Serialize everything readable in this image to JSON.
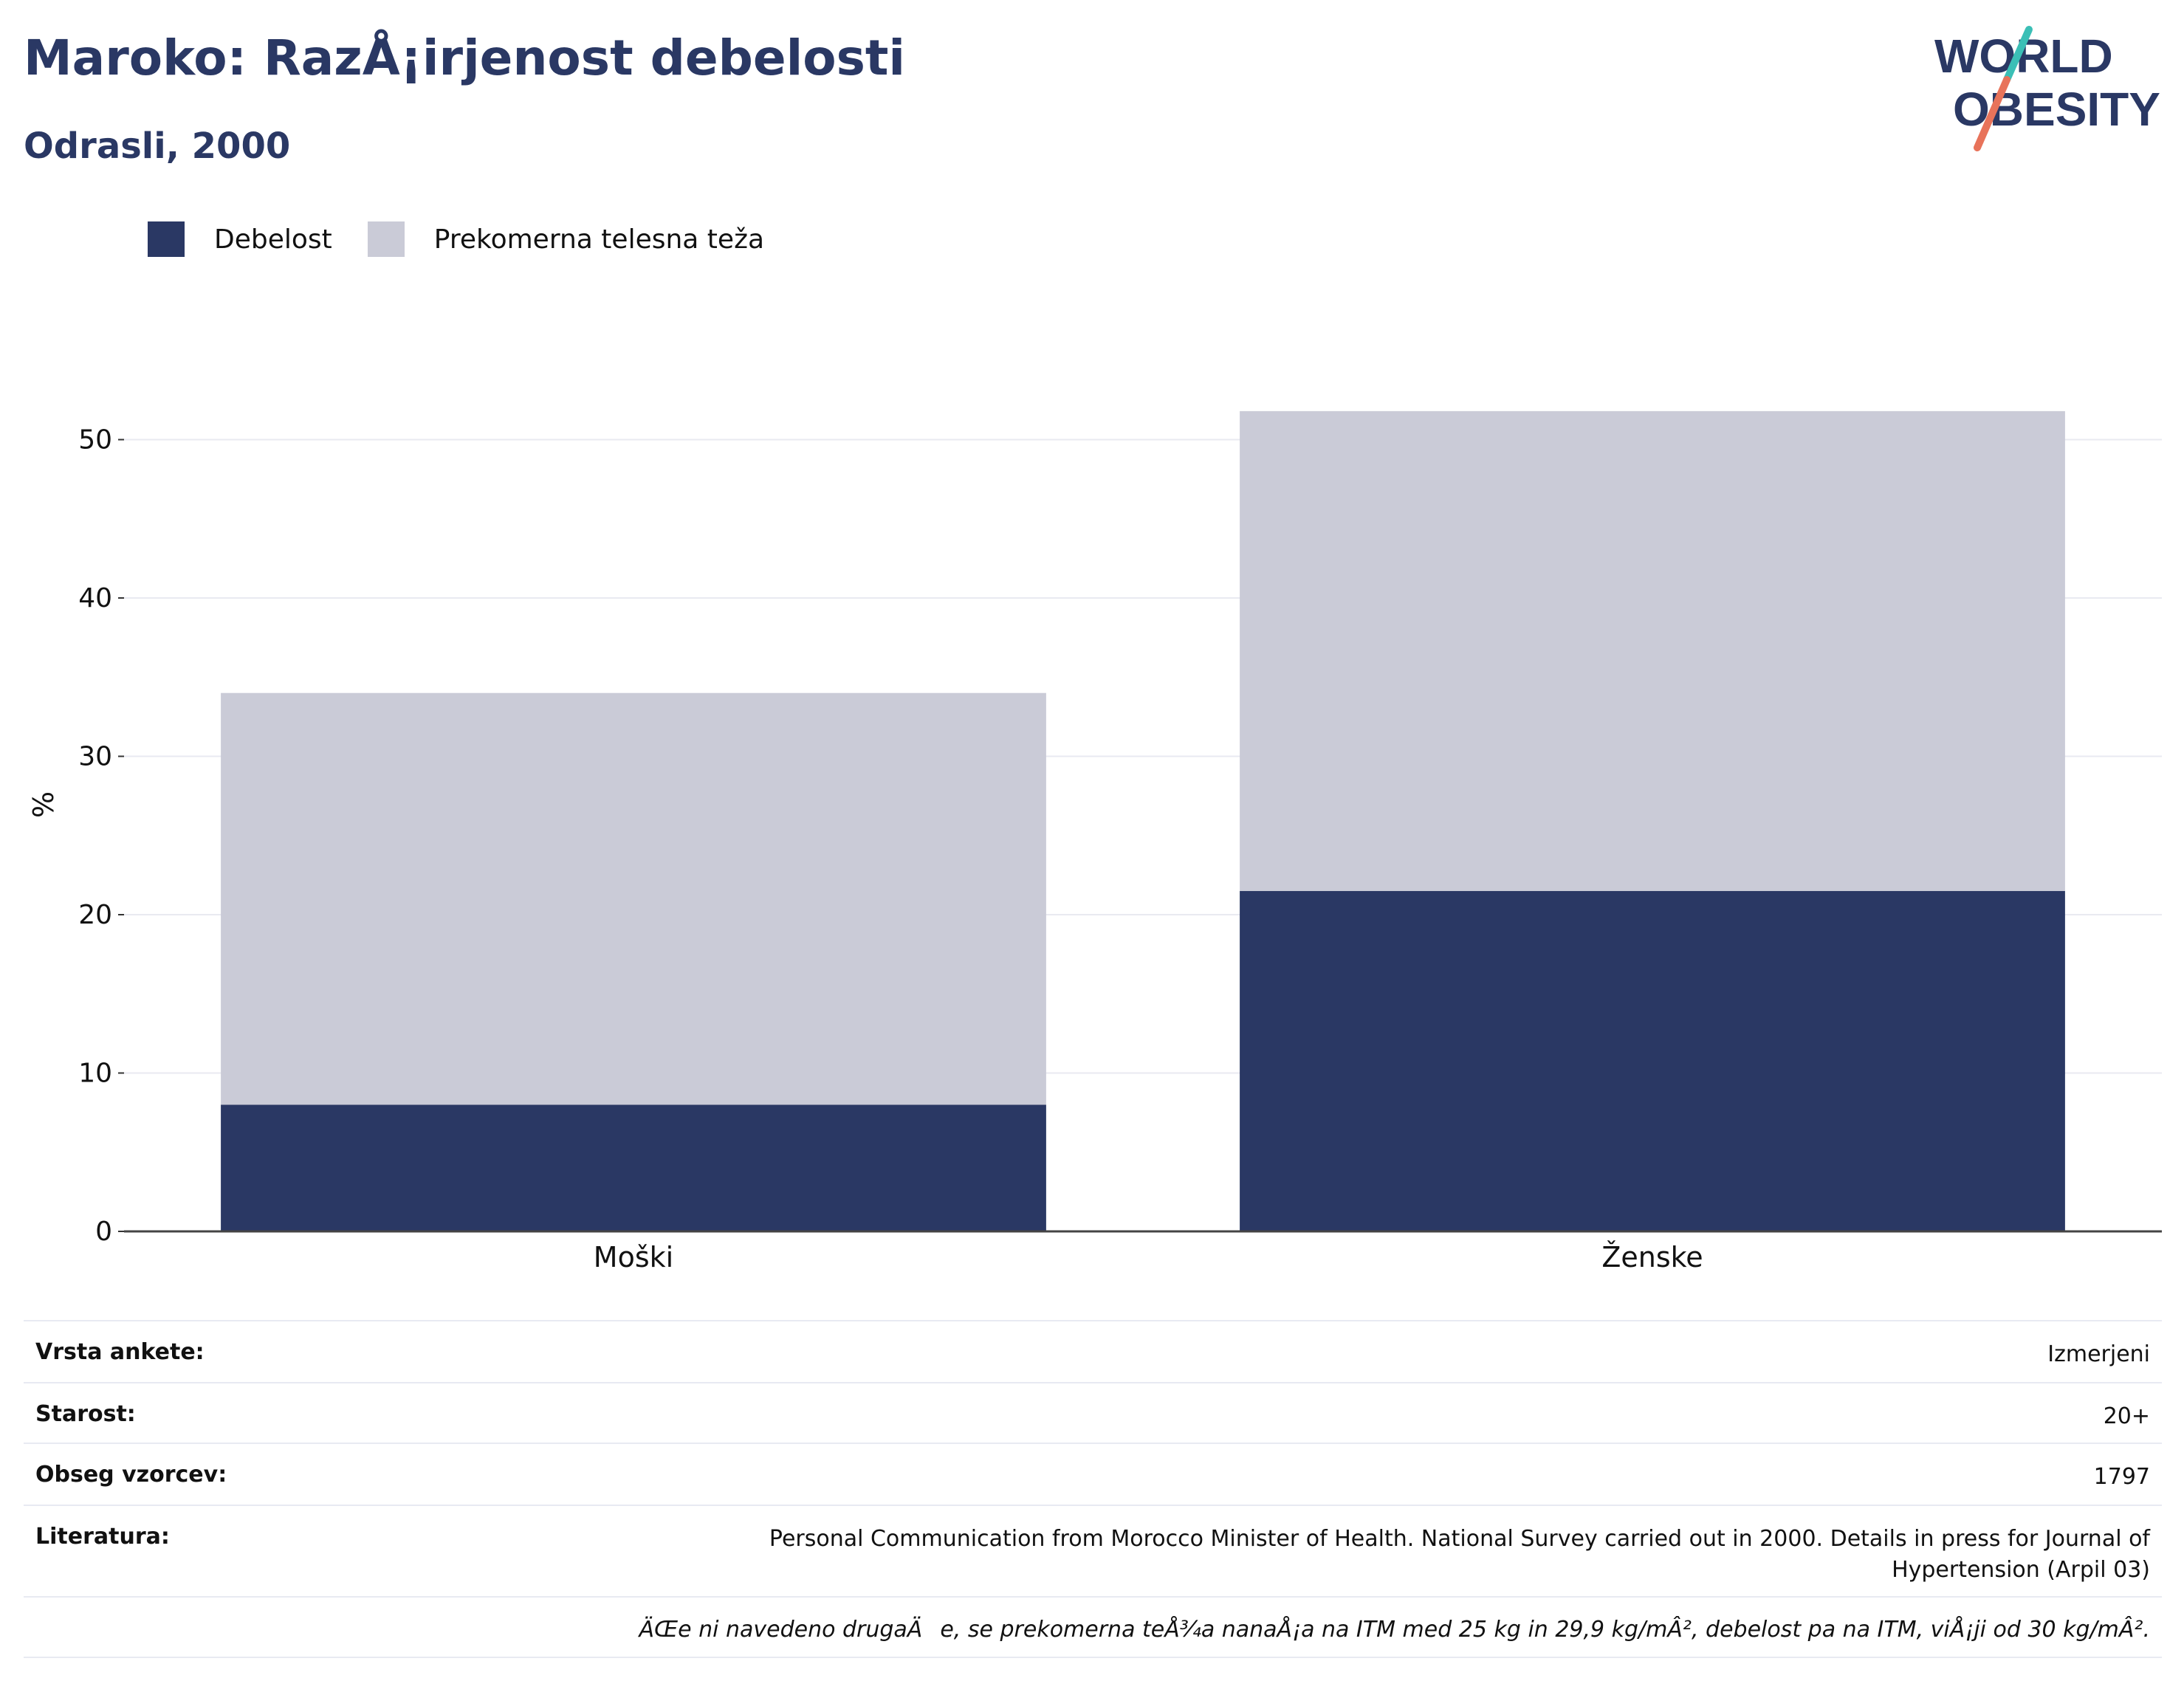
{
  "title": "Maroko: RazÅ¡irjenost debelosti",
  "subtitle": "Odrasli, 2000",
  "logo": {
    "line1": "WORLD",
    "line2": "OBESITY"
  },
  "colors": {
    "obesity": "#2a3864",
    "overweight": "#cacbd7",
    "title": "#2a3864",
    "logo_teal": "#3bbfb6",
    "logo_orange": "#e8735a"
  },
  "chart_data": {
    "type": "bar",
    "stacked": true,
    "categories": [
      "Moški",
      "Ženske"
    ],
    "series": [
      {
        "name": "Debelost",
        "values": [
          8,
          21.5
        ]
      },
      {
        "name": "Prekomerna telesna teža",
        "values": [
          26,
          30.3
        ]
      }
    ],
    "ylabel": "%",
    "xlabel": "",
    "ylim": [
      0,
      55
    ],
    "yticks": [
      0,
      10,
      20,
      30,
      40,
      50
    ],
    "grid": true,
    "legend": "top-left"
  },
  "info": {
    "rows": [
      {
        "key": "Vrsta ankete:",
        "value": "Izmerjeni"
      },
      {
        "key": "Starost:",
        "value": "20+"
      },
      {
        "key": "Obseg vzorcev:",
        "value": "1797"
      },
      {
        "key": "Literatura:",
        "value": "Personal Communication from Morocco Minister of Health. National Survey carried out in 2000. Details in press for Journal of Hypertension (Arpil 03)"
      }
    ],
    "note": "ÄŒe ni navedeno drugaÄe, se prekomerna teÅ¾a nanaÅ¡a na ITM med 25 kg in 29,9 kg/mÂ², debelost pa na ITM, viÅ¡ji od 30 kg/mÂ²."
  }
}
